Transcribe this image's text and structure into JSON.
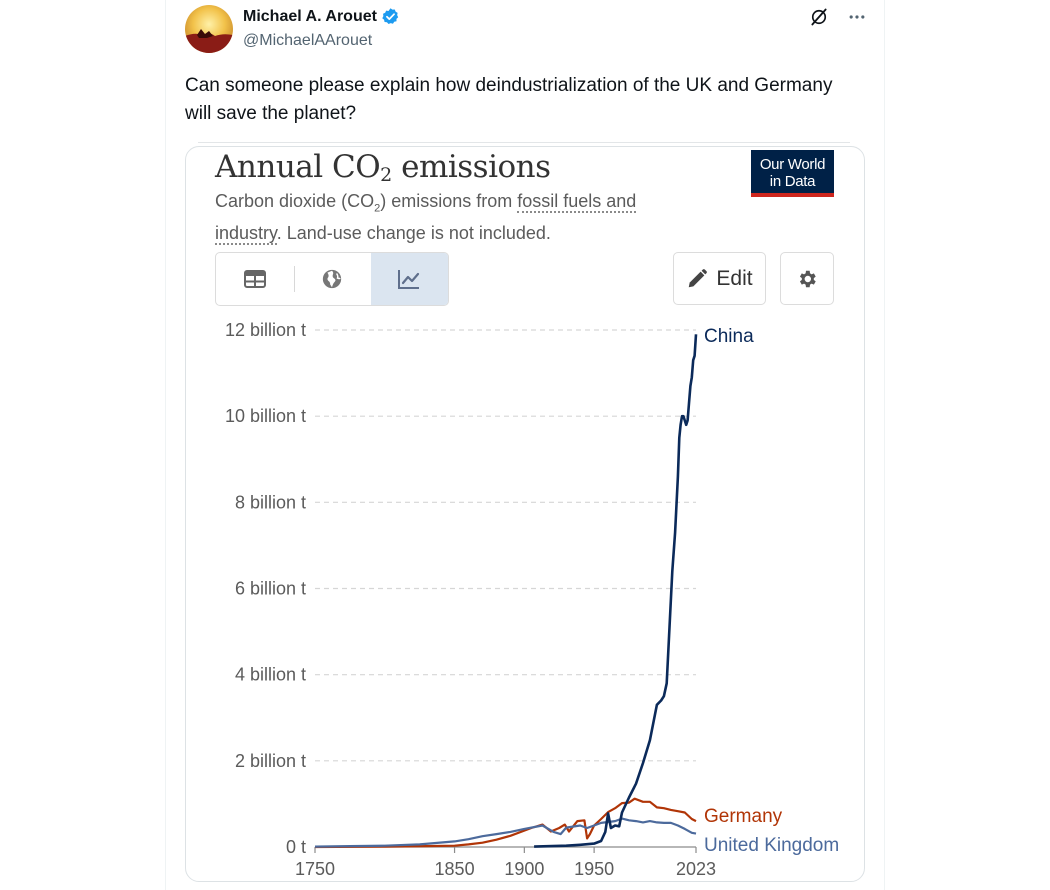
{
  "tweet": {
    "display_name": "Michael A. Arouet",
    "handle": "@MichaelAArouet",
    "text": "Can someone please explain how deindustrialization of the UK and Germany will save the planet?",
    "verified_color": "#1d9bf0"
  },
  "icons": {
    "verified": "verified-badge-icon",
    "grok": "grok-icon",
    "more": "more-icon",
    "table": "table-icon",
    "map": "globe-icon",
    "chart": "line-chart-icon",
    "edit": "pencil-icon",
    "settings": "gear-icon"
  },
  "chart_card": {
    "title_main": "Annual CO",
    "title_sub": "2",
    "title_end": " emissions",
    "subtitle_pre": "Carbon dioxide (CO",
    "subtitle_sub": "2",
    "subtitle_mid": ") emissions from ",
    "subtitle_link1": "fossil fuels and",
    "subtitle_link2": "industry",
    "subtitle_post": ". Land-use change is not included.",
    "logo_line1": "Our World",
    "logo_line2": "in Data",
    "edit_label": "Edit"
  },
  "chart_data": {
    "type": "line",
    "title": "Annual CO₂ emissions",
    "subtitle": "Carbon dioxide (CO₂) emissions from fossil fuels and industry. Land-use change is not included.",
    "xlabel": "",
    "ylabel": "",
    "xlim": [
      1750,
      2023
    ],
    "ylim": [
      0,
      12
    ],
    "x_ticks": [
      1750,
      1850,
      1900,
      1950,
      2023
    ],
    "y_ticks": [
      {
        "value": 0,
        "label": "0 t"
      },
      {
        "value": 2,
        "label": "2 billion t"
      },
      {
        "value": 4,
        "label": "4 billion t"
      },
      {
        "value": 6,
        "label": "6 billion t"
      },
      {
        "value": 8,
        "label": "8 billion t"
      },
      {
        "value": 10,
        "label": "10 billion t"
      },
      {
        "value": 12,
        "label": "12 billion t"
      }
    ],
    "grid": "horizontal-dashed",
    "legend": "end-of-line labels",
    "series": [
      {
        "name": "China",
        "color": "#0b2a5a",
        "points": [
          [
            1907,
            0.01
          ],
          [
            1920,
            0.02
          ],
          [
            1930,
            0.03
          ],
          [
            1940,
            0.05
          ],
          [
            1950,
            0.08
          ],
          [
            1955,
            0.14
          ],
          [
            1958,
            0.35
          ],
          [
            1960,
            0.78
          ],
          [
            1962,
            0.44
          ],
          [
            1965,
            0.5
          ],
          [
            1968,
            0.48
          ],
          [
            1970,
            0.8
          ],
          [
            1975,
            1.15
          ],
          [
            1980,
            1.47
          ],
          [
            1985,
            1.95
          ],
          [
            1990,
            2.48
          ],
          [
            1995,
            3.3
          ],
          [
            1998,
            3.4
          ],
          [
            2000,
            3.5
          ],
          [
            2002,
            3.8
          ],
          [
            2004,
            5.1
          ],
          [
            2006,
            6.4
          ],
          [
            2008,
            7.3
          ],
          [
            2010,
            8.6
          ],
          [
            2011,
            9.5
          ],
          [
            2012,
            9.8
          ],
          [
            2013,
            10.0
          ],
          [
            2014,
            10.0
          ],
          [
            2015,
            9.9
          ],
          [
            2016,
            9.8
          ],
          [
            2017,
            9.9
          ],
          [
            2018,
            10.3
          ],
          [
            2019,
            10.7
          ],
          [
            2020,
            10.9
          ],
          [
            2021,
            11.3
          ],
          [
            2022,
            11.4
          ],
          [
            2023,
            11.9
          ]
        ]
      },
      {
        "name": "Germany",
        "color": "#b13507",
        "points": [
          [
            1750,
            0.0
          ],
          [
            1800,
            0.01
          ],
          [
            1830,
            0.02
          ],
          [
            1850,
            0.03
          ],
          [
            1860,
            0.06
          ],
          [
            1870,
            0.1
          ],
          [
            1880,
            0.17
          ],
          [
            1890,
            0.26
          ],
          [
            1900,
            0.38
          ],
          [
            1905,
            0.44
          ],
          [
            1913,
            0.52
          ],
          [
            1919,
            0.36
          ],
          [
            1925,
            0.44
          ],
          [
            1929,
            0.52
          ],
          [
            1932,
            0.36
          ],
          [
            1938,
            0.6
          ],
          [
            1943,
            0.62
          ],
          [
            1945,
            0.2
          ],
          [
            1947,
            0.3
          ],
          [
            1950,
            0.5
          ],
          [
            1955,
            0.65
          ],
          [
            1960,
            0.81
          ],
          [
            1965,
            0.9
          ],
          [
            1970,
            1.02
          ],
          [
            1975,
            1.03
          ],
          [
            1979,
            1.12
          ],
          [
            1985,
            1.05
          ],
          [
            1990,
            1.05
          ],
          [
            1995,
            0.92
          ],
          [
            2000,
            0.9
          ],
          [
            2005,
            0.86
          ],
          [
            2010,
            0.83
          ],
          [
            2015,
            0.8
          ],
          [
            2020,
            0.65
          ],
          [
            2023,
            0.6
          ]
        ]
      },
      {
        "name": "United Kingdom",
        "color": "#4c6a9c",
        "points": [
          [
            1750,
            0.01
          ],
          [
            1775,
            0.02
          ],
          [
            1800,
            0.03
          ],
          [
            1825,
            0.06
          ],
          [
            1850,
            0.13
          ],
          [
            1860,
            0.18
          ],
          [
            1870,
            0.25
          ],
          [
            1880,
            0.3
          ],
          [
            1890,
            0.35
          ],
          [
            1900,
            0.42
          ],
          [
            1913,
            0.5
          ],
          [
            1921,
            0.35
          ],
          [
            1926,
            0.3
          ],
          [
            1930,
            0.45
          ],
          [
            1940,
            0.5
          ],
          [
            1945,
            0.44
          ],
          [
            1950,
            0.5
          ],
          [
            1955,
            0.56
          ],
          [
            1960,
            0.58
          ],
          [
            1965,
            0.6
          ],
          [
            1970,
            0.66
          ],
          [
            1975,
            0.62
          ],
          [
            1980,
            0.6
          ],
          [
            1985,
            0.57
          ],
          [
            1990,
            0.6
          ],
          [
            1995,
            0.57
          ],
          [
            2000,
            0.56
          ],
          [
            2005,
            0.56
          ],
          [
            2010,
            0.5
          ],
          [
            2015,
            0.42
          ],
          [
            2020,
            0.33
          ],
          [
            2023,
            0.31
          ]
        ]
      }
    ]
  }
}
